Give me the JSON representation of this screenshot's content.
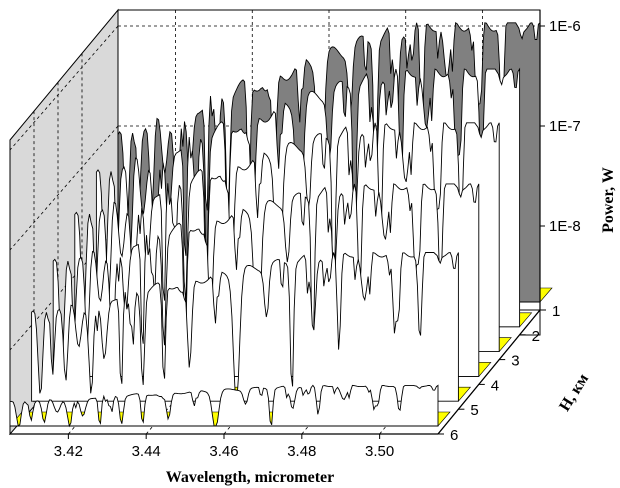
{
  "chart_data": {
    "type": "line",
    "subtype": "3d-waterfall",
    "title": "",
    "xlabel": "Wavelength, micrometer",
    "ylabel": "Power, W",
    "zlabel": "H, км",
    "x_range": [
      3.405,
      3.515
    ],
    "x_ticks": [
      "3.42",
      "3.44",
      "3.46",
      "3.48",
      "3.50"
    ],
    "y_scale": "log",
    "y_ticks": [
      "1E-6",
      "1E-7",
      "1E-8"
    ],
    "z_ticks": [
      "1",
      "2",
      "3",
      "4",
      "5",
      "6"
    ],
    "grid": true,
    "colors": {
      "floor": "#ffff00",
      "back_wall": "#c8c8c8",
      "side_wall": "#d9d9d9",
      "back_series_fill": "#808080",
      "line": "#000000"
    },
    "series": [
      {
        "name": "1",
        "level": 0.99
      },
      {
        "name": "2",
        "level": 0.84
      },
      {
        "name": "3",
        "level": 0.69
      },
      {
        "name": "4",
        "level": 0.54
      },
      {
        "name": "5",
        "level": 0.39
      },
      {
        "name": "6",
        "level": 0.1
      }
    ]
  }
}
